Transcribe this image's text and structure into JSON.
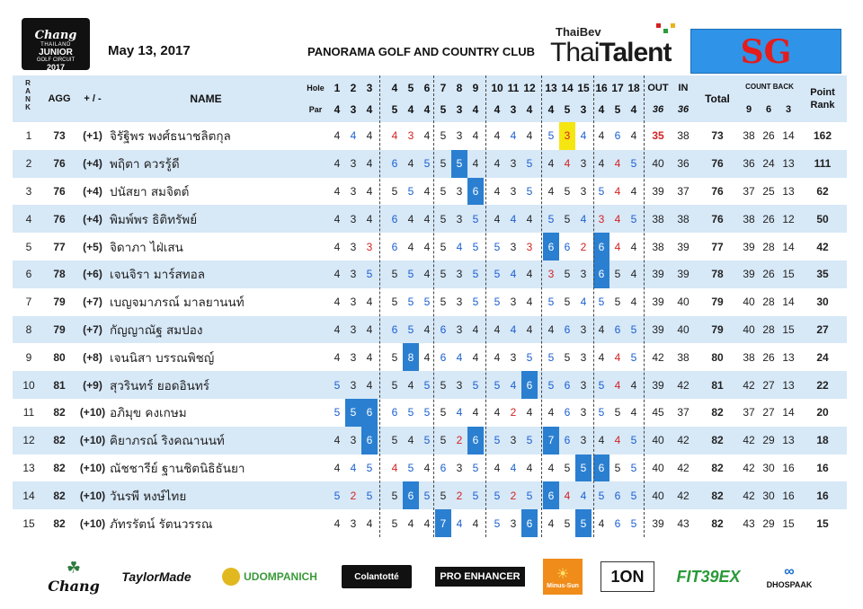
{
  "header": {
    "chang_logo": [
      "Chang",
      "THAILAND",
      "JUNIOR",
      "GOLF CIRCUIT",
      "2017"
    ],
    "date": "May 13, 2017",
    "club": "PANORAMA GOLF AND COUNTRY CLUB",
    "thaibev": "ThaiBev",
    "thaitalent_a": "Thai",
    "thaitalent_b": "Talent",
    "division": "SG"
  },
  "columns": {
    "rank": "RANK",
    "agg": "AGG",
    "plusminus": "+ / -",
    "name": "NAME",
    "hole": "Hole",
    "par": "Par",
    "out": "OUT",
    "in": "IN",
    "out_par": "36",
    "in_par": "36",
    "total": "Total",
    "countback": "COUNT BACK",
    "cb_labels": [
      "9",
      "6",
      "3"
    ],
    "point_rank": "Point Rank",
    "holes": [
      "1",
      "2",
      "3",
      "4",
      "5",
      "6",
      "7",
      "8",
      "9",
      "10",
      "11",
      "12",
      "13",
      "14",
      "15",
      "16",
      "17",
      "18"
    ],
    "pars": [
      "4",
      "3",
      "4",
      "5",
      "4",
      "4",
      "5",
      "3",
      "4",
      "4",
      "3",
      "4",
      "4",
      "5",
      "3",
      "4",
      "5",
      "4"
    ]
  },
  "players": [
    {
      "rank": "1",
      "agg": "73",
      "pm": "(+1)",
      "name": "จิรัฐิพร  พงศ์ธนาชลิตกุล",
      "scores": [
        "4",
        "4",
        "4",
        "4",
        "3",
        "4",
        "5",
        "3",
        "4",
        "4",
        "4",
        "4",
        "5",
        "3",
        "4",
        "4",
        "6",
        "4"
      ],
      "out": "35",
      "in": "38",
      "total": "73",
      "cb": [
        "38",
        "26",
        "14"
      ],
      "pts": "162"
    },
    {
      "rank": "2",
      "agg": "76",
      "pm": "(+4)",
      "name": "พฤิตา  ควรรู้ดี",
      "scores": [
        "4",
        "3",
        "4",
        "6",
        "4",
        "5",
        "5",
        "5",
        "4",
        "4",
        "3",
        "5",
        "4",
        "4",
        "3",
        "4",
        "4",
        "5"
      ],
      "out": "40",
      "in": "36",
      "total": "76",
      "cb": [
        "36",
        "24",
        "13"
      ],
      "pts": "111"
    },
    {
      "rank": "3",
      "agg": "76",
      "pm": "(+4)",
      "name": "ปนัสยา  สมจิตต์",
      "scores": [
        "4",
        "3",
        "4",
        "5",
        "5",
        "4",
        "5",
        "3",
        "6",
        "4",
        "3",
        "5",
        "4",
        "5",
        "3",
        "5",
        "4",
        "4"
      ],
      "out": "39",
      "in": "37",
      "total": "76",
      "cb": [
        "37",
        "25",
        "13"
      ],
      "pts": "62"
    },
    {
      "rank": "4",
      "agg": "76",
      "pm": "(+4)",
      "name": "พิมพ์พร  ธิติทรัพย์",
      "scores": [
        "4",
        "3",
        "4",
        "6",
        "4",
        "4",
        "5",
        "3",
        "5",
        "4",
        "4",
        "4",
        "5",
        "5",
        "4",
        "3",
        "4",
        "5"
      ],
      "out": "38",
      "in": "38",
      "total": "76",
      "cb": [
        "38",
        "26",
        "12"
      ],
      "pts": "50"
    },
    {
      "rank": "5",
      "agg": "77",
      "pm": "(+5)",
      "name": "จิดาภา  ไฝ่เสน",
      "scores": [
        "4",
        "3",
        "3",
        "6",
        "4",
        "4",
        "5",
        "4",
        "5",
        "5",
        "3",
        "3",
        "6",
        "6",
        "2",
        "6",
        "4",
        "4"
      ],
      "out": "38",
      "in": "39",
      "total": "77",
      "cb": [
        "39",
        "28",
        "14"
      ],
      "pts": "42"
    },
    {
      "rank": "6",
      "agg": "78",
      "pm": "(+6)",
      "name": "เจนจิรา  มาร์สทอล",
      "scores": [
        "4",
        "3",
        "5",
        "5",
        "5",
        "4",
        "5",
        "3",
        "5",
        "5",
        "4",
        "4",
        "3",
        "5",
        "3",
        "6",
        "5",
        "4"
      ],
      "out": "39",
      "in": "39",
      "total": "78",
      "cb": [
        "39",
        "26",
        "15"
      ],
      "pts": "35"
    },
    {
      "rank": "7",
      "agg": "79",
      "pm": "(+7)",
      "name": "เบญจมาภรณ์  มาลยานนท์",
      "scores": [
        "4",
        "3",
        "4",
        "5",
        "5",
        "5",
        "5",
        "3",
        "5",
        "5",
        "3",
        "4",
        "5",
        "5",
        "4",
        "5",
        "5",
        "4"
      ],
      "out": "39",
      "in": "40",
      "total": "79",
      "cb": [
        "40",
        "28",
        "14"
      ],
      "pts": "30"
    },
    {
      "rank": "8",
      "agg": "79",
      "pm": "(+7)",
      "name": "กัญญาณัฐ  สมปอง",
      "scores": [
        "4",
        "3",
        "4",
        "6",
        "5",
        "4",
        "6",
        "3",
        "4",
        "4",
        "4",
        "4",
        "4",
        "6",
        "3",
        "4",
        "6",
        "5"
      ],
      "out": "39",
      "in": "40",
      "total": "79",
      "cb": [
        "40",
        "28",
        "15"
      ],
      "pts": "27"
    },
    {
      "rank": "9",
      "agg": "80",
      "pm": "(+8)",
      "name": "เจนนิสา  บรรณพิชญ์",
      "scores": [
        "4",
        "3",
        "4",
        "5",
        "8",
        "4",
        "6",
        "4",
        "4",
        "4",
        "3",
        "5",
        "5",
        "5",
        "3",
        "4",
        "4",
        "5"
      ],
      "out": "42",
      "in": "38",
      "total": "80",
      "cb": [
        "38",
        "26",
        "13"
      ],
      "pts": "24"
    },
    {
      "rank": "10",
      "agg": "81",
      "pm": "(+9)",
      "name": "สุวรินทร์  ยอดอินทร์",
      "scores": [
        "5",
        "3",
        "4",
        "5",
        "4",
        "5",
        "5",
        "3",
        "5",
        "5",
        "4",
        "6",
        "5",
        "6",
        "3",
        "5",
        "4",
        "4"
      ],
      "out": "39",
      "in": "42",
      "total": "81",
      "cb": [
        "42",
        "27",
        "13"
      ],
      "pts": "22"
    },
    {
      "rank": "11",
      "agg": "82",
      "pm": "(+10)",
      "name": "อภิมุข  คงเกษม",
      "scores": [
        "5",
        "5",
        "6",
        "6",
        "5",
        "5",
        "5",
        "4",
        "4",
        "4",
        "2",
        "4",
        "4",
        "6",
        "3",
        "5",
        "5",
        "4"
      ],
      "out": "45",
      "in": "37",
      "total": "82",
      "cb": [
        "37",
        "27",
        "14"
      ],
      "pts": "20"
    },
    {
      "rank": "12",
      "agg": "82",
      "pm": "(+10)",
      "name": "ฅิยาภรณ์  ริงคณานนท์",
      "scores": [
        "4",
        "3",
        "6",
        "5",
        "4",
        "5",
        "5",
        "2",
        "6",
        "5",
        "3",
        "5",
        "7",
        "6",
        "3",
        "4",
        "4",
        "5"
      ],
      "out": "40",
      "in": "42",
      "total": "82",
      "cb": [
        "42",
        "29",
        "13"
      ],
      "pts": "18"
    },
    {
      "rank": "13",
      "agg": "82",
      "pm": "(+10)",
      "name": "ณัชชารีย์  ฐานชิตนิธิธันยา",
      "scores": [
        "4",
        "4",
        "5",
        "4",
        "5",
        "4",
        "6",
        "3",
        "5",
        "4",
        "4",
        "4",
        "4",
        "5",
        "5",
        "6",
        "5",
        "5"
      ],
      "out": "40",
      "in": "42",
      "total": "82",
      "cb": [
        "42",
        "30",
        "16"
      ],
      "pts": "16"
    },
    {
      "rank": "14",
      "agg": "82",
      "pm": "(+10)",
      "name": "วันรพี  หงษ์ไทย",
      "scores": [
        "5",
        "2",
        "5",
        "5",
        "6",
        "5",
        "5",
        "2",
        "5",
        "5",
        "2",
        "5",
        "6",
        "4",
        "4",
        "5",
        "6",
        "5"
      ],
      "out": "40",
      "in": "42",
      "total": "82",
      "cb": [
        "42",
        "30",
        "16"
      ],
      "pts": "16"
    },
    {
      "rank": "15",
      "agg": "82",
      "pm": "(+10)",
      "name": "ภัทรรัตน์  รัตนวรรณ",
      "scores": [
        "4",
        "3",
        "4",
        "5",
        "4",
        "4",
        "7",
        "4",
        "4",
        "5",
        "3",
        "6",
        "4",
        "5",
        "5",
        "4",
        "6",
        "5"
      ],
      "out": "39",
      "in": "43",
      "total": "82",
      "cb": [
        "43",
        "29",
        "15"
      ],
      "pts": "15"
    }
  ],
  "sponsors": [
    "Chang",
    "TaylorMade",
    "UDOMPANICH",
    "Colantotté",
    "PRO ENHANCER",
    "Minus-Sun",
    "1ON",
    "FIT39EX",
    "DHOSPAAK"
  ]
}
